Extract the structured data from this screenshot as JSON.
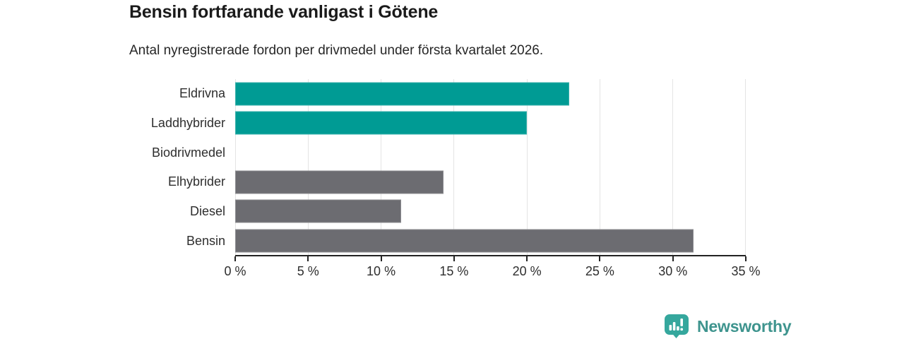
{
  "chart_data": {
    "type": "bar",
    "orientation": "horizontal",
    "title": "Bensin fortfarande vanligast i Götene",
    "subtitle": "Antal nyregistrerade fordon per drivmedel under första kvartalet 2026.",
    "categories": [
      "Eldrivna",
      "Laddhybrider",
      "Biodrivmedel",
      "Elhybrider",
      "Diesel",
      "Bensin"
    ],
    "values": [
      22.9,
      20.0,
      0.0,
      14.3,
      11.4,
      31.4
    ],
    "unit": "%",
    "xlim": [
      0,
      35
    ],
    "x_ticks": [
      0,
      5,
      10,
      15,
      20,
      25,
      30,
      35
    ],
    "x_tick_suffix": " %",
    "grid": true,
    "legend": "none",
    "bar_colors": [
      "#009b94",
      "#009b94",
      "#6c6c71",
      "#6c6c71",
      "#6c6c71",
      "#6c6c71"
    ],
    "palette": {
      "highlight_teal": "#009b94",
      "neutral_gray": "#6c6c71",
      "gridline": "#e4e4e4",
      "axis": "#222222"
    }
  },
  "footer": {
    "brand": "Newsworthy",
    "brand_color": "#3e948e",
    "logo_color": "#35a79d"
  }
}
